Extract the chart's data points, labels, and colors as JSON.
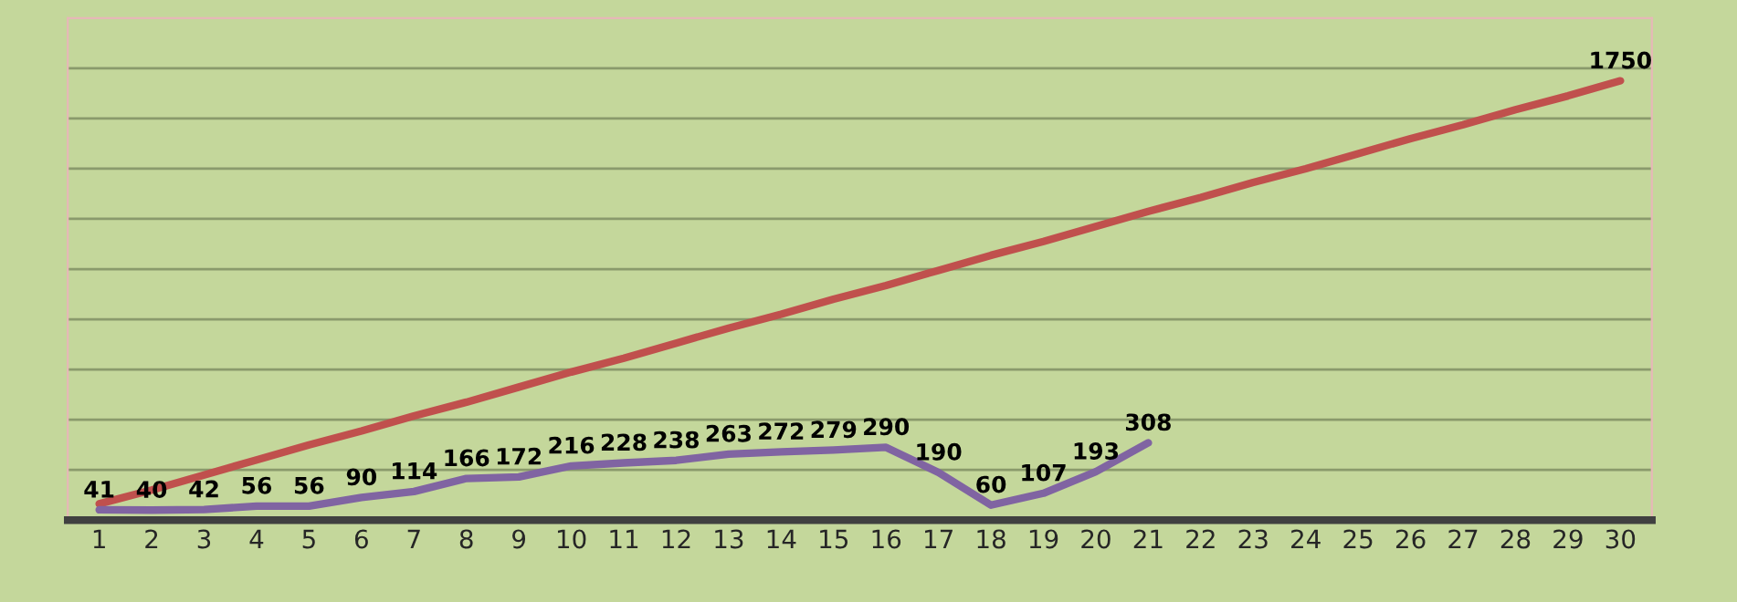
{
  "chart_data": {
    "type": "line",
    "categories": [
      "1",
      "2",
      "3",
      "4",
      "5",
      "6",
      "7",
      "8",
      "9",
      "10",
      "11",
      "12",
      "13",
      "14",
      "15",
      "16",
      "17",
      "18",
      "19",
      "20",
      "21",
      "22",
      "23",
      "24",
      "25",
      "26",
      "27",
      "28",
      "29",
      "30"
    ],
    "series": [
      {
        "color": "#c0504d",
        "values": [
          65,
          120,
          180,
          240,
          300,
          355,
          415,
          470,
          530,
          590,
          645,
          705,
          765,
          820,
          880,
          935,
          995,
          1055,
          1110,
          1170,
          1230,
          1285,
          1345,
          1400,
          1460,
          1520,
          1575,
          1635,
          1690,
          1750
        ],
        "value_labels": [
          null,
          null,
          null,
          null,
          null,
          null,
          null,
          null,
          null,
          null,
          null,
          null,
          null,
          null,
          null,
          null,
          null,
          null,
          null,
          null,
          null,
          null,
          null,
          null,
          null,
          null,
          null,
          null,
          null,
          "1750"
        ]
      },
      {
        "color": "#8064a2",
        "values": [
          41,
          40,
          42,
          56,
          56,
          90,
          114,
          166,
          172,
          216,
          228,
          238,
          263,
          272,
          279,
          290,
          190,
          60,
          107,
          193,
          308,
          null,
          null,
          null,
          null,
          null,
          null,
          null,
          null,
          null
        ],
        "value_labels": [
          "41",
          "40",
          "42",
          "56",
          "56",
          "90",
          "114",
          "166",
          "172",
          "216",
          "228",
          "238",
          "263",
          "272",
          "279",
          "290",
          "190",
          "60",
          "107",
          "193",
          "308",
          null,
          null,
          null,
          null,
          null,
          null,
          null,
          null,
          null
        ]
      }
    ],
    "ylim": [
      0,
      2000
    ],
    "yticks": [
      {
        "value": 200,
        "label": null
      },
      {
        "value": 400,
        "label": null
      },
      {
        "value": 600,
        "label": null
      },
      {
        "value": 800,
        "label": null
      },
      {
        "value": 1000,
        "label": null
      },
      {
        "value": 1200,
        "label": null
      },
      {
        "value": 1400,
        "label": null
      },
      {
        "value": 1600,
        "label": null
      },
      {
        "value": 1800,
        "label": null
      }
    ],
    "tick_labels": "x",
    "grid": "y",
    "marker": "none",
    "line_style": "solid",
    "legend": false
  }
}
